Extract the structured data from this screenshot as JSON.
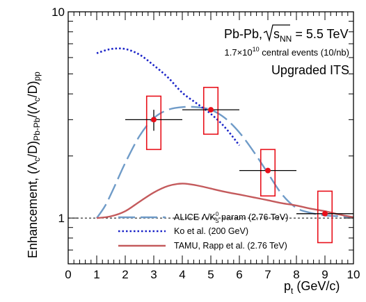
{
  "chart_data": {
    "type": "line",
    "xlabel": {
      "main": "p",
      "sub": "t",
      "rest": " (GeV/c)"
    },
    "ylabel": {
      "prefix": "Enhancement, (Λ",
      "sub1": "c",
      "mid1": "/D)",
      "sub2": "Pb-Pb",
      "mid2": "/(Λ",
      "sub3": "c",
      "mid3": "/D)",
      "sub4": "pp"
    },
    "xlim": [
      0,
      10
    ],
    "ylim": [
      0.6,
      10
    ],
    "yscale": "log",
    "x_ticks": [
      0,
      1,
      2,
      3,
      4,
      5,
      6,
      7,
      8,
      9,
      10
    ],
    "x_tick_labels": [
      "0",
      "1",
      "2",
      "3",
      "4",
      "5",
      "6",
      "7",
      "8",
      "9",
      "10"
    ],
    "y_tick_labels": [
      {
        "value": 1,
        "label": "1"
      },
      {
        "value": 10,
        "label": "10"
      }
    ],
    "reference_line": {
      "y": 1,
      "style": "dashed"
    },
    "annotations": {
      "system": {
        "prefix": "Pb-Pb, ",
        "sqrt_arg": "s",
        "sqrt_sub": "NN",
        "rest": " = 5.5 TeV"
      },
      "events": {
        "prefix": "1.7×10",
        "exp": "10",
        "rest": " central events (10/nb)"
      },
      "detector": "Upgraded ITS"
    },
    "series": [
      {
        "name": {
          "main": "ALICE Λ/K",
          "sup": "0",
          "sub": "S",
          "rest": " param (2.76 TeV)"
        },
        "style": "long-dash",
        "color": "#6f9bc8",
        "x": [
          1.0,
          1.3,
          1.6,
          2.0,
          2.5,
          3.0,
          3.5,
          4.0,
          4.5,
          5.0,
          5.5,
          6.0,
          6.5,
          7.0,
          7.5,
          8.0,
          8.5,
          9.0,
          9.5,
          10.0
        ],
        "y": [
          1.0,
          1.15,
          1.4,
          1.85,
          2.5,
          3.05,
          3.35,
          3.45,
          3.45,
          3.35,
          3.05,
          2.6,
          2.1,
          1.65,
          1.3,
          1.12,
          1.06,
          1.03,
          1.02,
          1.01
        ]
      },
      {
        "name": "Ko et al. (200 GeV)",
        "style": "dotted",
        "color": "#1a23c8",
        "x": [
          1.0,
          1.5,
          2.0,
          2.5,
          3.0,
          3.5,
          4.0,
          4.5,
          5.0,
          5.5,
          6.0
        ],
        "y": [
          6.3,
          6.6,
          6.6,
          6.2,
          5.5,
          4.8,
          4.05,
          3.6,
          3.2,
          2.75,
          2.25
        ]
      },
      {
        "name": "TAMU, Rapp et al. (2.76 TeV)",
        "style": "solid",
        "color": "#c45a5c",
        "x": [
          1.0,
          1.5,
          2.0,
          2.5,
          3.0,
          3.5,
          4.0,
          4.5,
          5.0,
          5.5,
          6.0,
          6.5,
          7.0,
          7.5,
          8.0,
          8.5,
          9.0,
          9.5,
          10.0
        ],
        "y": [
          1.0,
          1.02,
          1.08,
          1.2,
          1.33,
          1.43,
          1.47,
          1.44,
          1.39,
          1.34,
          1.3,
          1.26,
          1.22,
          1.18,
          1.15,
          1.11,
          1.08,
          1.04,
          1.01
        ]
      }
    ],
    "data_points": {
      "color": "#e8101a",
      "marker": "circle",
      "points": [
        {
          "x": 3,
          "y": 3.0,
          "xerr": 1.0,
          "yerr_low": 0.35,
          "yerr_high": 0.35,
          "sys_low": 2.15,
          "sys_high": 3.9
        },
        {
          "x": 5,
          "y": 3.35,
          "xerr": 1.0,
          "yerr_low": 0.05,
          "yerr_high": 0.05,
          "sys_low": 2.55,
          "sys_high": 4.3
        },
        {
          "x": 7,
          "y": 1.7,
          "xerr": 1.0,
          "yerr_low": 0.02,
          "yerr_high": 0.02,
          "sys_low": 1.28,
          "sys_high": 2.15
        },
        {
          "x": 9,
          "y": 1.05,
          "xerr": 1.0,
          "yerr_low": 0.01,
          "yerr_high": 0.01,
          "sys_low": 0.76,
          "sys_high": 1.35
        }
      ]
    }
  }
}
